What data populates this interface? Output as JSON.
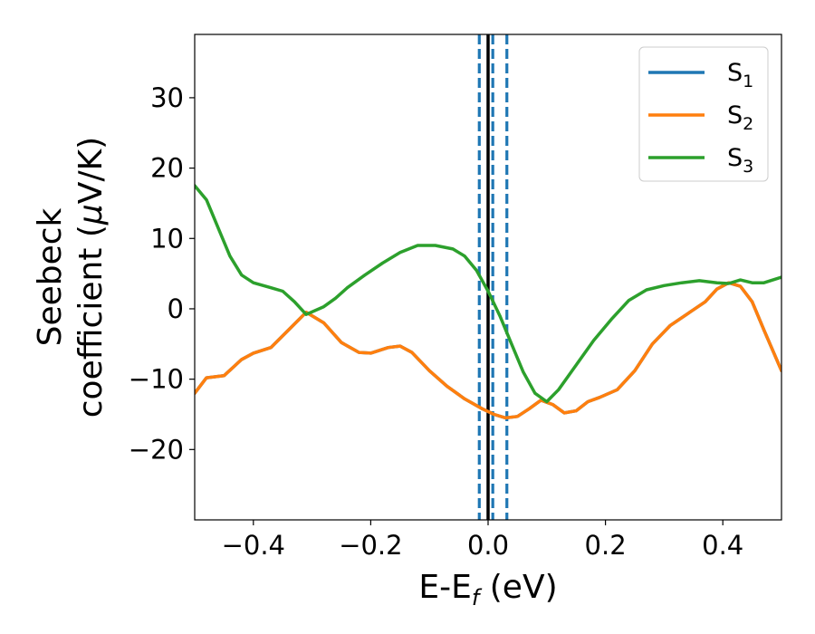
{
  "chart_data": {
    "type": "line",
    "xlabel": "E-E",
    "xlabel_sub": "f",
    "xlabel_unit": " (eV)",
    "ylabel_line1": "Seebeck",
    "ylabel_line2_prefix": "coefficient  (",
    "ylabel_mu": "μ",
    "ylabel_line2_suffix": "V/K)",
    "xlim": [
      -0.5,
      0.5
    ],
    "ylim": [
      -30,
      39
    ],
    "x_ticks": [
      -0.4,
      -0.2,
      0.0,
      0.2,
      0.4
    ],
    "x_tick_labels": [
      "−0.4",
      "−0.2",
      "0.0",
      "0.2",
      "0.4"
    ],
    "y_ticks": [
      -20,
      -10,
      0,
      10,
      20,
      30
    ],
    "y_tick_labels": [
      "−20",
      "−10",
      "0",
      "10",
      "20",
      "30"
    ],
    "grid": false,
    "legend_position": "top-right",
    "vertical_lines": [
      {
        "x": 0.0,
        "style": "solid",
        "color": "#000000"
      },
      {
        "x": -0.015,
        "style": "dashed",
        "color": "#1f77b4"
      },
      {
        "x": 0.008,
        "style": "dashed",
        "color": "#1f77b4"
      },
      {
        "x": 0.032,
        "style": "dashed",
        "color": "#1f77b4"
      }
    ],
    "series": [
      {
        "name": "S",
        "sub": "1",
        "color": "#1f77b4",
        "points": [
          [
            -0.5,
            -12.0
          ],
          [
            -0.48,
            -9.8
          ],
          [
            -0.45,
            -9.5
          ],
          [
            -0.42,
            -7.2
          ],
          [
            -0.4,
            -6.3
          ],
          [
            -0.37,
            -5.5
          ],
          [
            -0.34,
            -3.0
          ],
          [
            -0.31,
            -0.5
          ],
          [
            -0.28,
            -2.0
          ],
          [
            -0.25,
            -4.8
          ],
          [
            -0.22,
            -6.2
          ],
          [
            -0.2,
            -6.3
          ],
          [
            -0.17,
            -5.5
          ],
          [
            -0.15,
            -5.3
          ],
          [
            -0.13,
            -6.2
          ],
          [
            -0.1,
            -8.8
          ],
          [
            -0.07,
            -11.0
          ],
          [
            -0.04,
            -12.8
          ],
          [
            -0.01,
            -14.2
          ],
          [
            0.01,
            -15.0
          ],
          [
            0.03,
            -15.5
          ],
          [
            0.05,
            -15.3
          ],
          [
            0.07,
            -14.2
          ],
          [
            0.09,
            -13.0
          ],
          [
            0.11,
            -13.6
          ],
          [
            0.13,
            -14.8
          ],
          [
            0.15,
            -14.5
          ],
          [
            0.17,
            -13.2
          ],
          [
            0.19,
            -12.6
          ],
          [
            0.22,
            -11.5
          ],
          [
            0.25,
            -8.8
          ],
          [
            0.28,
            -5.0
          ],
          [
            0.31,
            -2.4
          ],
          [
            0.34,
            -0.7
          ],
          [
            0.37,
            1.0
          ],
          [
            0.39,
            2.8
          ],
          [
            0.41,
            3.7
          ],
          [
            0.43,
            3.2
          ],
          [
            0.45,
            1.0
          ],
          [
            0.47,
            -3.0
          ],
          [
            0.5,
            -8.8
          ]
        ]
      },
      {
        "name": "S",
        "sub": "2",
        "color": "#ff7f0e",
        "points": [
          [
            -0.5,
            -12.0
          ],
          [
            -0.48,
            -9.8
          ],
          [
            -0.45,
            -9.5
          ],
          [
            -0.42,
            -7.2
          ],
          [
            -0.4,
            -6.3
          ],
          [
            -0.37,
            -5.5
          ],
          [
            -0.34,
            -3.0
          ],
          [
            -0.31,
            -0.5
          ],
          [
            -0.28,
            -2.0
          ],
          [
            -0.25,
            -4.8
          ],
          [
            -0.22,
            -6.2
          ],
          [
            -0.2,
            -6.3
          ],
          [
            -0.17,
            -5.5
          ],
          [
            -0.15,
            -5.3
          ],
          [
            -0.13,
            -6.2
          ],
          [
            -0.1,
            -8.8
          ],
          [
            -0.07,
            -11.0
          ],
          [
            -0.04,
            -12.8
          ],
          [
            -0.01,
            -14.2
          ],
          [
            0.01,
            -15.0
          ],
          [
            0.03,
            -15.5
          ],
          [
            0.05,
            -15.3
          ],
          [
            0.07,
            -14.2
          ],
          [
            0.09,
            -13.0
          ],
          [
            0.11,
            -13.6
          ],
          [
            0.13,
            -14.8
          ],
          [
            0.15,
            -14.5
          ],
          [
            0.17,
            -13.2
          ],
          [
            0.19,
            -12.6
          ],
          [
            0.22,
            -11.5
          ],
          [
            0.25,
            -8.8
          ],
          [
            0.28,
            -5.0
          ],
          [
            0.31,
            -2.4
          ],
          [
            0.34,
            -0.7
          ],
          [
            0.37,
            1.0
          ],
          [
            0.39,
            2.8
          ],
          [
            0.41,
            3.7
          ],
          [
            0.43,
            3.2
          ],
          [
            0.45,
            1.0
          ],
          [
            0.47,
            -3.0
          ],
          [
            0.5,
            -8.8
          ]
        ]
      },
      {
        "name": "S",
        "sub": "3",
        "color": "#2ca02c",
        "points": [
          [
            -0.5,
            17.5
          ],
          [
            -0.48,
            15.5
          ],
          [
            -0.46,
            11.5
          ],
          [
            -0.44,
            7.5
          ],
          [
            -0.42,
            4.8
          ],
          [
            -0.4,
            3.7
          ],
          [
            -0.37,
            3.0
          ],
          [
            -0.35,
            2.5
          ],
          [
            -0.33,
            1.0
          ],
          [
            -0.31,
            -0.8
          ],
          [
            -0.28,
            0.3
          ],
          [
            -0.26,
            1.5
          ],
          [
            -0.24,
            3.0
          ],
          [
            -0.21,
            4.8
          ],
          [
            -0.18,
            6.5
          ],
          [
            -0.15,
            8.0
          ],
          [
            -0.12,
            9.0
          ],
          [
            -0.09,
            9.0
          ],
          [
            -0.06,
            8.5
          ],
          [
            -0.04,
            7.5
          ],
          [
            -0.02,
            5.5
          ],
          [
            0.0,
            2.5
          ],
          [
            0.02,
            -1.0
          ],
          [
            0.04,
            -5.0
          ],
          [
            0.06,
            -9.0
          ],
          [
            0.08,
            -12.0
          ],
          [
            0.1,
            -13.2
          ],
          [
            0.12,
            -11.5
          ],
          [
            0.15,
            -8.0
          ],
          [
            0.18,
            -4.5
          ],
          [
            0.21,
            -1.5
          ],
          [
            0.24,
            1.2
          ],
          [
            0.27,
            2.7
          ],
          [
            0.3,
            3.3
          ],
          [
            0.33,
            3.7
          ],
          [
            0.36,
            4.0
          ],
          [
            0.39,
            3.7
          ],
          [
            0.41,
            3.6
          ],
          [
            0.43,
            4.1
          ],
          [
            0.45,
            3.7
          ],
          [
            0.47,
            3.7
          ],
          [
            0.5,
            4.5
          ]
        ]
      }
    ]
  }
}
